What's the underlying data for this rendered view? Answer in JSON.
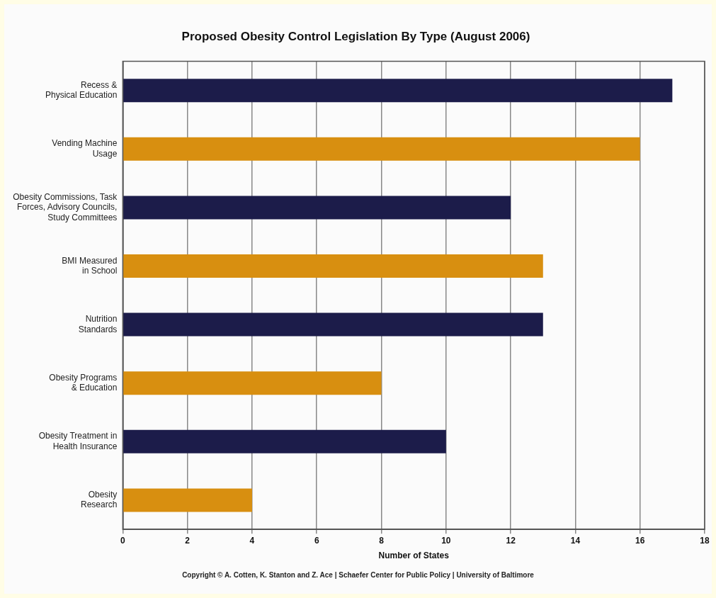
{
  "chart_data": {
    "type": "bar",
    "orientation": "horizontal",
    "title": "Proposed Obesity Control Legislation By Type (August 2006)",
    "xlabel": "Number of States",
    "categories": [
      "Recess &\nPhysical Education",
      "Vending Machine\nUsage",
      "Obesity Commissions, Task\nForces, Advisory Councils,\nStudy Committees",
      "BMI Measured\nin School",
      "Nutrition\nStandards",
      "Obesity Programs\n& Education",
      "Obesity Treatment in\nHealth Insurance",
      "Obesity\nResearch"
    ],
    "values": [
      17,
      16,
      12,
      13,
      13,
      8,
      10,
      4
    ],
    "colors": [
      "#1c1c4a",
      "#d88f10",
      "#1c1c4a",
      "#d88f10",
      "#1c1c4a",
      "#d88f10",
      "#1c1c4a",
      "#d88f10"
    ],
    "xlim": [
      0,
      18
    ],
    "xticks": [
      0,
      2,
      4,
      6,
      8,
      10,
      12,
      14,
      16,
      18
    ],
    "grid": "x",
    "legend": false,
    "annotations": [
      "Copyright © A. Cotten, K. Stanton and Z. Ace | Schaefer Center for Public Policy | University of Baltimore"
    ]
  }
}
